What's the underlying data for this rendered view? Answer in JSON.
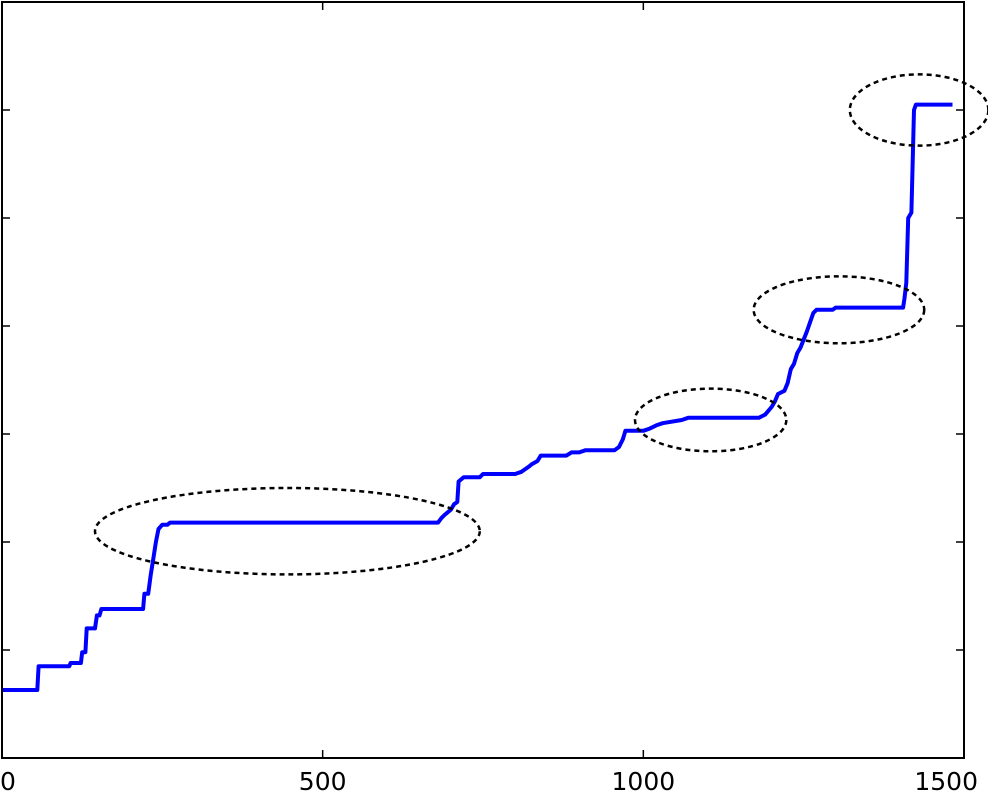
{
  "chart_data": {
    "type": "line",
    "title": "",
    "xlabel": "",
    "ylabel": "",
    "xlim": [
      0,
      1500
    ],
    "ylim": [
      0,
      7
    ],
    "x_ticks": [
      0,
      500,
      1000,
      1500
    ],
    "x_tick_labels": [
      "0",
      "500",
      "1000",
      "1500"
    ],
    "y_ticks": [
      1,
      2,
      3,
      4,
      5,
      6
    ],
    "y_tick_labels": [],
    "grid": false,
    "colors": {
      "line": "#0000ff",
      "ellipse": "#000000",
      "axes": "#000000"
    },
    "series": [
      {
        "type": "step",
        "points": [
          [
            0,
            0.63
          ],
          [
            55,
            0.63
          ],
          [
            57,
            0.85
          ],
          [
            105,
            0.85
          ],
          [
            107,
            0.88
          ],
          [
            123,
            0.88
          ],
          [
            125,
            0.98
          ],
          [
            130,
            0.98
          ],
          [
            132,
            1.2
          ],
          [
            145,
            1.2
          ],
          [
            148,
            1.32
          ],
          [
            152,
            1.32
          ],
          [
            155,
            1.38
          ],
          [
            220,
            1.38
          ],
          [
            222,
            1.52
          ],
          [
            228,
            1.52
          ],
          [
            232,
            1.7
          ],
          [
            236,
            1.85
          ],
          [
            240,
            2.0
          ],
          [
            244,
            2.12
          ],
          [
            250,
            2.16
          ],
          [
            258,
            2.16
          ],
          [
            262,
            2.18
          ],
          [
            680,
            2.18
          ],
          [
            685,
            2.22
          ],
          [
            690,
            2.25
          ],
          [
            700,
            2.3
          ],
          [
            705,
            2.35
          ],
          [
            710,
            2.37
          ],
          [
            712,
            2.56
          ],
          [
            720,
            2.6
          ],
          [
            745,
            2.6
          ],
          [
            750,
            2.63
          ],
          [
            800,
            2.63
          ],
          [
            810,
            2.65
          ],
          [
            822,
            2.7
          ],
          [
            826,
            2.72
          ],
          [
            835,
            2.75
          ],
          [
            840,
            2.8
          ],
          [
            862,
            2.8
          ],
          [
            880,
            2.8
          ],
          [
            888,
            2.83
          ],
          [
            900,
            2.83
          ],
          [
            910,
            2.85
          ],
          [
            955,
            2.85
          ],
          [
            962,
            2.88
          ],
          [
            968,
            2.95
          ],
          [
            972,
            3.03
          ],
          [
            1000,
            3.03
          ],
          [
            1010,
            3.05
          ],
          [
            1020,
            3.08
          ],
          [
            1030,
            3.1
          ],
          [
            1060,
            3.13
          ],
          [
            1070,
            3.15
          ],
          [
            1180,
            3.15
          ],
          [
            1190,
            3.18
          ],
          [
            1200,
            3.25
          ],
          [
            1205,
            3.3
          ],
          [
            1210,
            3.37
          ],
          [
            1220,
            3.4
          ],
          [
            1225,
            3.47
          ],
          [
            1230,
            3.6
          ],
          [
            1235,
            3.65
          ],
          [
            1240,
            3.75
          ],
          [
            1245,
            3.8
          ],
          [
            1255,
            3.95
          ],
          [
            1265,
            4.12
          ],
          [
            1270,
            4.15
          ],
          [
            1295,
            4.15
          ],
          [
            1300,
            4.17
          ],
          [
            1405,
            4.17
          ],
          [
            1407,
            4.25
          ],
          [
            1410,
            4.4
          ],
          [
            1413,
            5.0
          ],
          [
            1418,
            5.05
          ],
          [
            1422,
            6.0
          ],
          [
            1425,
            6.05
          ],
          [
            1482,
            6.05
          ]
        ]
      }
    ],
    "ellipses": [
      {
        "cx": 445,
        "cy": 2.1,
        "rx": 300,
        "ry": 0.4
      },
      {
        "cx": 1105,
        "cy": 3.13,
        "rx": 118,
        "ry": 0.29
      },
      {
        "cx": 1305,
        "cy": 4.15,
        "rx": 133,
        "ry": 0.31
      },
      {
        "cx": 1430,
        "cy": 6.0,
        "rx": 108,
        "ry": 0.33
      }
    ]
  }
}
